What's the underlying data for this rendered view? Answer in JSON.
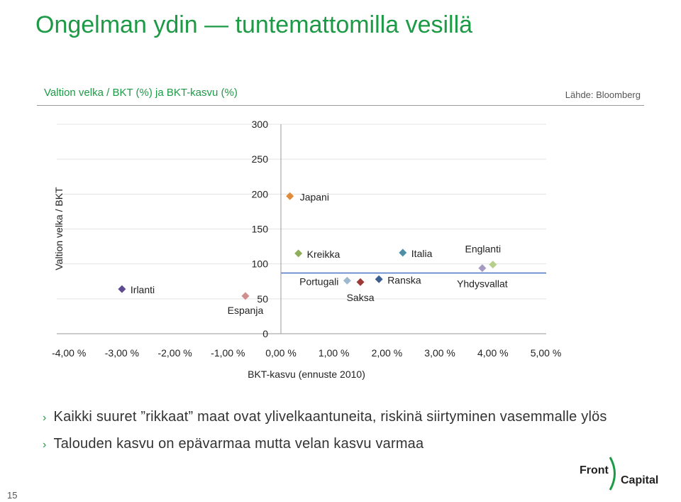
{
  "slide": {
    "title": "Ongelman ydin — tuntemattomilla vesillä",
    "page_number": "15",
    "logo": {
      "front": "Front",
      "capital": "Capital"
    },
    "bullets": [
      "Kaikki suuret ”rikkaat” maat ovat ylivelkaantuneita, riskinä siirtyminen vasemmalle ylös",
      "Talouden kasvu on epävarmaa mutta velan kasvu varmaa"
    ],
    "bullet_marker": "›"
  },
  "chart_data": {
    "type": "scatter",
    "title": "Valtion velka / BKT (%) ja BKT-kasvu (%)",
    "source": "Lähde: Bloomberg",
    "xlabel": "BKT-kasvu (ennuste 2010)",
    "ylabel": "Valtion velka / BKT",
    "xlim": [
      -4,
      5
    ],
    "ylim": [
      0,
      300
    ],
    "x_ticks": [
      "-4,00 %",
      "-3,00 %",
      "-2,00 %",
      "-1,00 %",
      "0,00 %",
      "1,00 %",
      "2,00 %",
      "3,00 %",
      "4,00 %",
      "5,00 %"
    ],
    "y_ticks": [
      "0",
      "50",
      "100",
      "150",
      "200",
      "250",
      "300"
    ],
    "grid": true,
    "reference_line_y": 87,
    "points": [
      {
        "label": "Japani",
        "x": 0.17,
        "y": 197,
        "color": "#e08b3a"
      },
      {
        "label": "Kreikka",
        "x": 0.33,
        "y": 115,
        "color": "#8fae5a"
      },
      {
        "label": "Italia",
        "x": 2.3,
        "y": 116,
        "color": "#4f8fa6"
      },
      {
        "label": "Englanti",
        "x": 4.0,
        "y": 99,
        "color": "#b6cf8a"
      },
      {
        "label": "Yhdysvallat",
        "x": 3.8,
        "y": 94,
        "color": "#a59bc2"
      },
      {
        "label": "Portugali",
        "x": 1.25,
        "y": 76,
        "color": "#9db8cf"
      },
      {
        "label": "Saksa",
        "x": 1.5,
        "y": 74,
        "color": "#9b3a36"
      },
      {
        "label": "Ranska",
        "x": 1.85,
        "y": 78,
        "color": "#3c5f8f"
      },
      {
        "label": "Irlanti",
        "x": -3.0,
        "y": 64,
        "color": "#5e4a91"
      },
      {
        "label": "Espanja",
        "x": -0.67,
        "y": 54,
        "color": "#d08f8f"
      }
    ]
  }
}
